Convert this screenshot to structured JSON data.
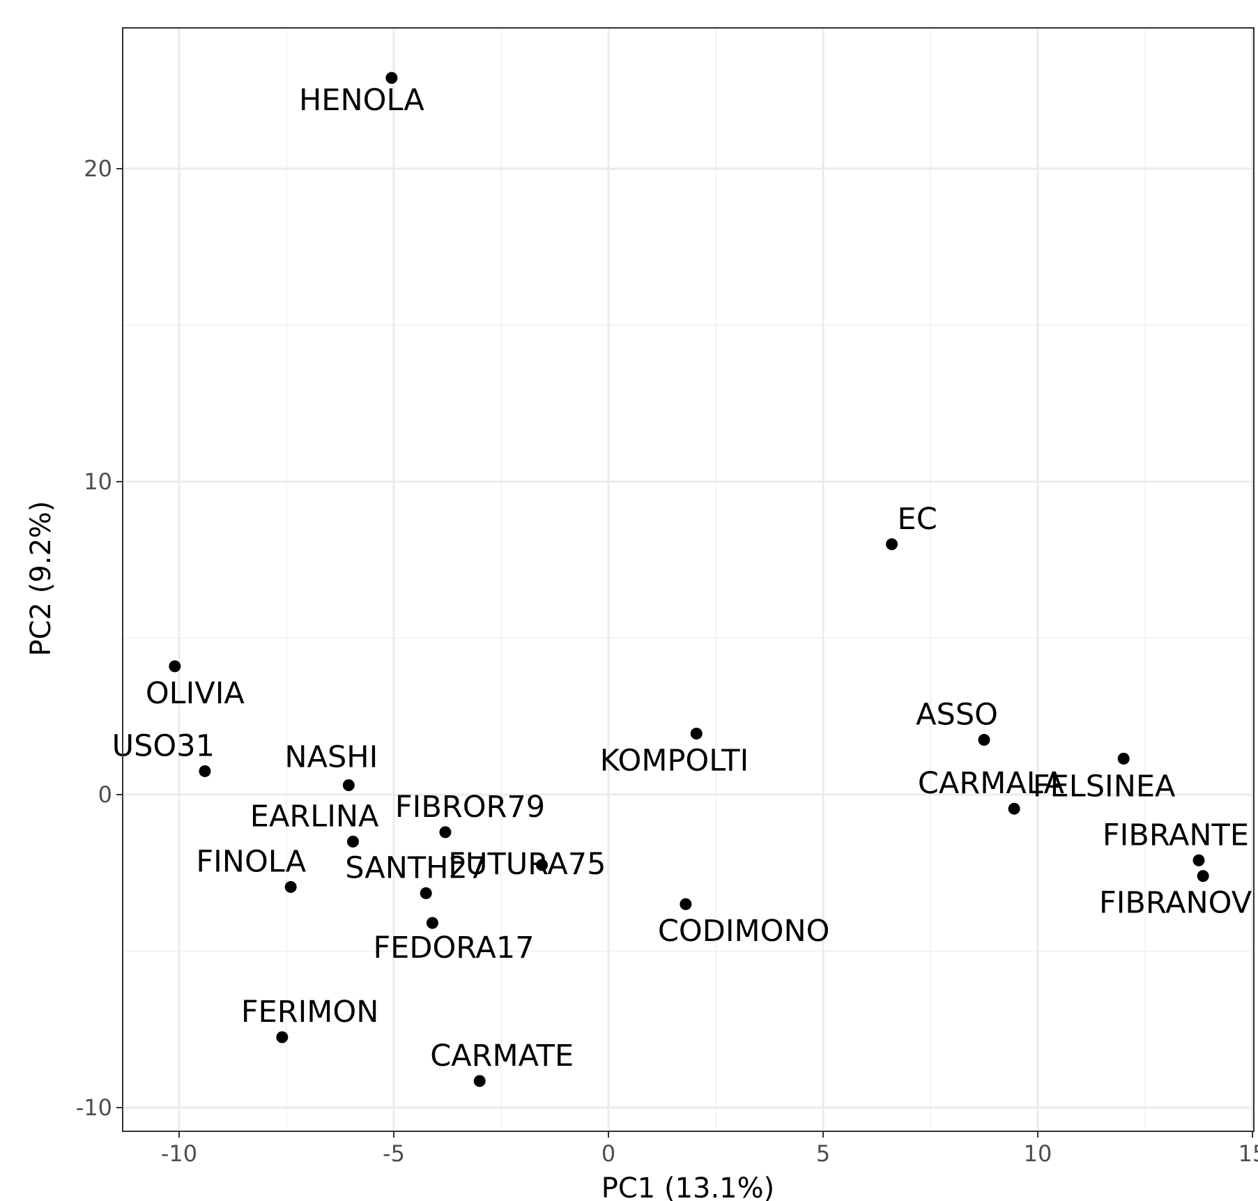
{
  "chart_data": {
    "type": "scatter",
    "xlabel": "PC1 (13.1%)",
    "ylabel": "PC2 (9.2%)",
    "xlim": [
      -11.3,
      15.0
    ],
    "ylim": [
      -10.8,
      24.5
    ],
    "x_ticks": [
      -10,
      -5,
      0,
      5,
      10,
      15
    ],
    "y_ticks": [
      -10,
      0,
      10,
      20
    ],
    "grid": true,
    "legend": "none",
    "point_color": "#000000",
    "points": [
      {
        "label": "HENOLA",
        "x": -5.05,
        "y": 22.9,
        "label_pos": "below"
      },
      {
        "label": "EC",
        "x": 6.6,
        "y": 8.0,
        "label_pos": "above-right"
      },
      {
        "label": "OLIVIA",
        "x": -10.1,
        "y": 4.1,
        "label_pos": "below-right"
      },
      {
        "label": "USO31",
        "x": -9.4,
        "y": 0.75,
        "label_pos": "above-left"
      },
      {
        "label": "NASHI",
        "x": -6.05,
        "y": 0.3,
        "label_pos": "above-left"
      },
      {
        "label": "KOMPOLTI",
        "x": 2.05,
        "y": 1.95,
        "label_pos": "below-left"
      },
      {
        "label": "ASSO",
        "x": 8.75,
        "y": 1.75,
        "label_pos": "above-left"
      },
      {
        "label": "FELSINEA",
        "x": 12.0,
        "y": 1.15,
        "label_pos": "below"
      },
      {
        "label": "CARMALA",
        "x": 9.45,
        "y": -0.45,
        "label_pos": "above-left"
      },
      {
        "label": "EARLINA",
        "x": -5.95,
        "y": -1.5,
        "label_pos": "above-left"
      },
      {
        "label": "FIBROR79",
        "x": -3.8,
        "y": -1.2,
        "label_pos": "above-right"
      },
      {
        "label": "FIBRANTE",
        "x": 13.75,
        "y": -2.1,
        "label_pos": "above-left"
      },
      {
        "label": "FIBRANOV",
        "x": 13.85,
        "y": -2.6,
        "label_pos": "below-left"
      },
      {
        "label": "FUTURA75",
        "x": -1.55,
        "y": -2.25,
        "label_pos": "below-left"
      },
      {
        "label": "FINOLA",
        "x": -7.4,
        "y": -2.95,
        "label_pos": "above-left"
      },
      {
        "label": "SANTH27",
        "x": -4.25,
        "y": -3.15,
        "label_pos": "above-left"
      },
      {
        "label": "CODIMONO",
        "x": 1.8,
        "y": -3.5,
        "label_pos": "below-right"
      },
      {
        "label": "FEDORA17",
        "x": -4.1,
        "y": -4.1,
        "label_pos": "below-right"
      },
      {
        "label": "FERIMON",
        "x": -7.6,
        "y": -7.75,
        "label_pos": "above-right"
      },
      {
        "label": "CARMATE",
        "x": -3.0,
        "y": -9.15,
        "label_pos": "above-right"
      }
    ]
  }
}
